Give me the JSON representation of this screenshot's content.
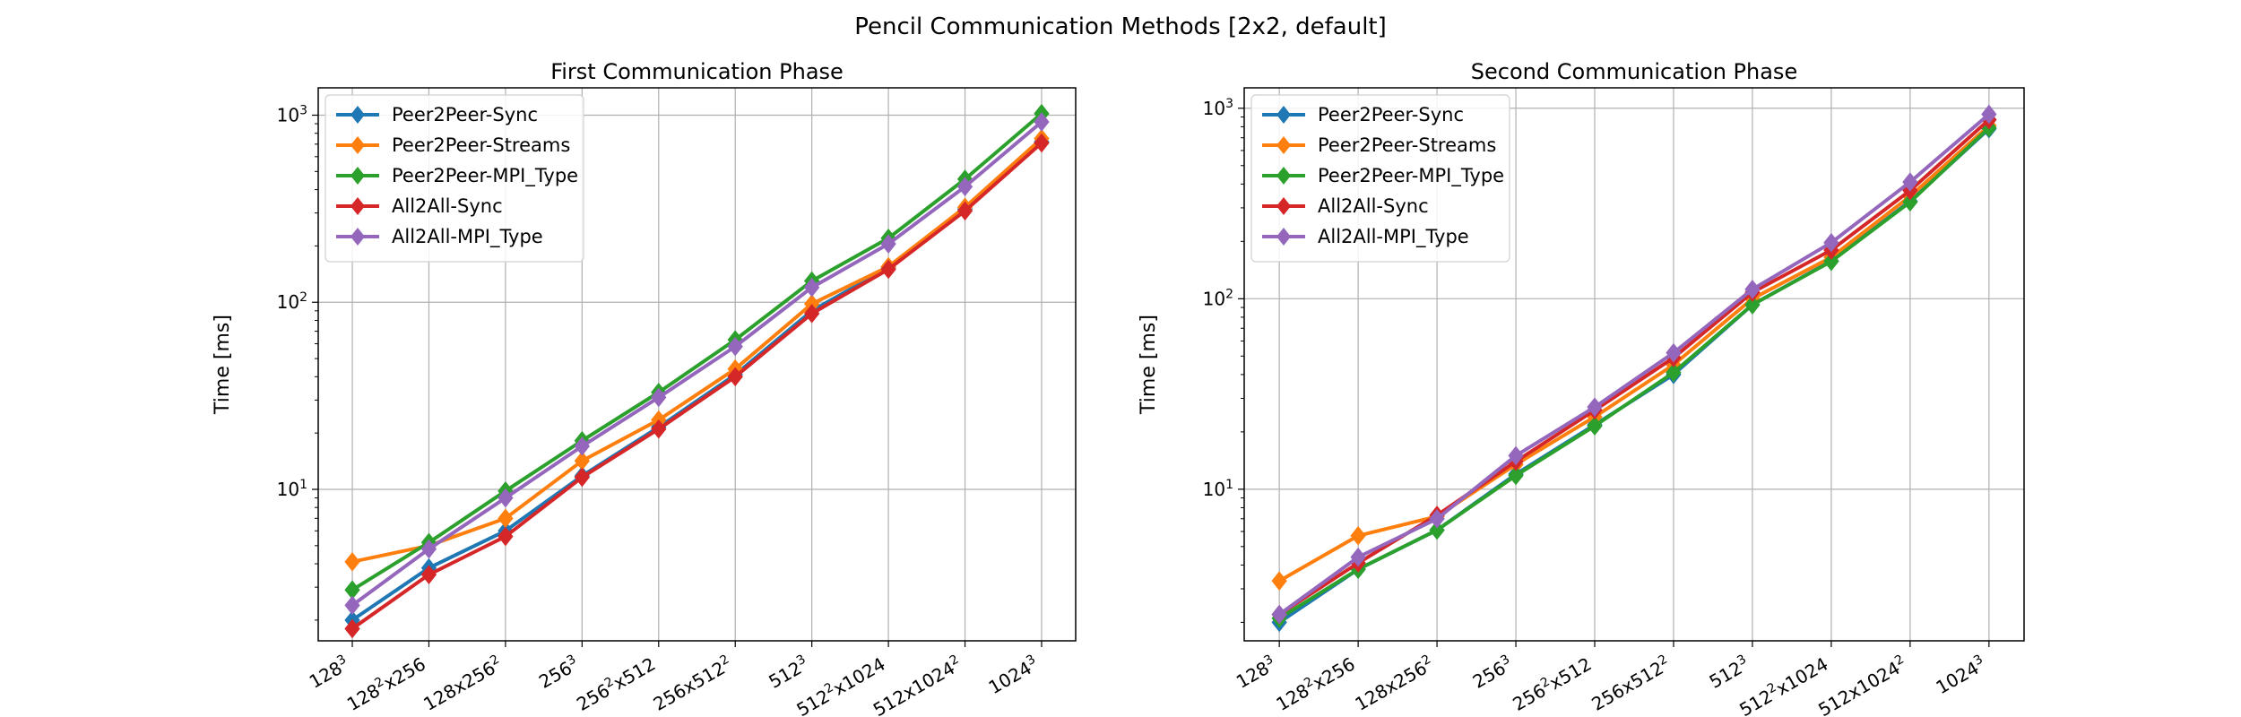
{
  "figure": {
    "suptitle": "Pencil Communication Methods [2x2, default]"
  },
  "chart_data": [
    {
      "type": "line",
      "title": "First Communication Phase",
      "xlabel": "",
      "ylabel": "Time [ms]",
      "yscale": "log",
      "ylim": [
        1.55,
        1400
      ],
      "grid": true,
      "legend": "top-left",
      "categories": [
        "128^3",
        "128^2x256",
        "128x256^2",
        "256^3",
        "256^2x512",
        "256x512^2",
        "512^3",
        "512^2x1024",
        "512x1024^2",
        "1024^3"
      ],
      "yticks": [
        {
          "label": "10^1",
          "value": 10
        },
        {
          "label": "10^2",
          "value": 100
        },
        {
          "label": "10^3",
          "value": 1000
        }
      ],
      "series": [
        {
          "name": "Peer2Peer-Sync",
          "color": "#1f77b4",
          "values": [
            2.0,
            3.8,
            6.0,
            11.8,
            21.5,
            41,
            90,
            153,
            315,
            720
          ]
        },
        {
          "name": "Peer2Peer-Streams",
          "color": "#ff7f0e",
          "values": [
            4.1,
            5.0,
            7.0,
            14.2,
            23.5,
            44,
            98,
            155,
            322,
            750
          ]
        },
        {
          "name": "Peer2Peer-MPI_Type",
          "color": "#2ca02c",
          "values": [
            2.9,
            5.2,
            9.8,
            18.2,
            33,
            63,
            130,
            220,
            455,
            1020
          ]
        },
        {
          "name": "All2All-Sync",
          "color": "#d62728",
          "values": [
            1.8,
            3.5,
            5.6,
            11.6,
            21,
            40,
            87,
            150,
            308,
            710
          ]
        },
        {
          "name": "All2All-MPI_Type",
          "color": "#9467bd",
          "values": [
            2.4,
            4.8,
            9.0,
            17.0,
            31,
            58,
            120,
            205,
            415,
            920
          ]
        }
      ]
    },
    {
      "type": "line",
      "title": "Second Communication Phase",
      "xlabel": "",
      "ylabel": "Time [ms]",
      "yscale": "log",
      "ylim": [
        1.6,
        1280
      ],
      "grid": true,
      "legend": "top-left",
      "categories": [
        "128^3",
        "128^2x256",
        "128x256^2",
        "256^3",
        "256^2x512",
        "256x512^2",
        "512^3",
        "512^2x1024",
        "512x1024^2",
        "1024^3"
      ],
      "yticks": [
        {
          "label": "10^1",
          "value": 10
        },
        {
          "label": "10^2",
          "value": 100
        },
        {
          "label": "10^3",
          "value": 1000
        }
      ],
      "series": [
        {
          "name": "Peer2Peer-Sync",
          "color": "#1f77b4",
          "values": [
            2.0,
            3.8,
            6.1,
            12.0,
            21.8,
            40,
            93,
            158,
            325,
            780
          ]
        },
        {
          "name": "Peer2Peer-Streams",
          "color": "#ff7f0e",
          "values": [
            3.3,
            5.7,
            7.2,
            13.5,
            24,
            45,
            100,
            165,
            345,
            810
          ]
        },
        {
          "name": "Peer2Peer-MPI_Type",
          "color": "#2ca02c",
          "values": [
            2.1,
            3.8,
            6.1,
            11.8,
            21.5,
            41,
            93,
            157,
            322,
            790
          ]
        },
        {
          "name": "All2All-Sync",
          "color": "#d62728",
          "values": [
            2.2,
            4.1,
            7.3,
            14,
            26,
            49,
            108,
            180,
            370,
            870
          ]
        },
        {
          "name": "All2All-MPI_Type",
          "color": "#9467bd",
          "values": [
            2.2,
            4.4,
            7.0,
            15,
            27,
            52,
            112,
            197,
            410,
            930
          ]
        }
      ]
    }
  ]
}
